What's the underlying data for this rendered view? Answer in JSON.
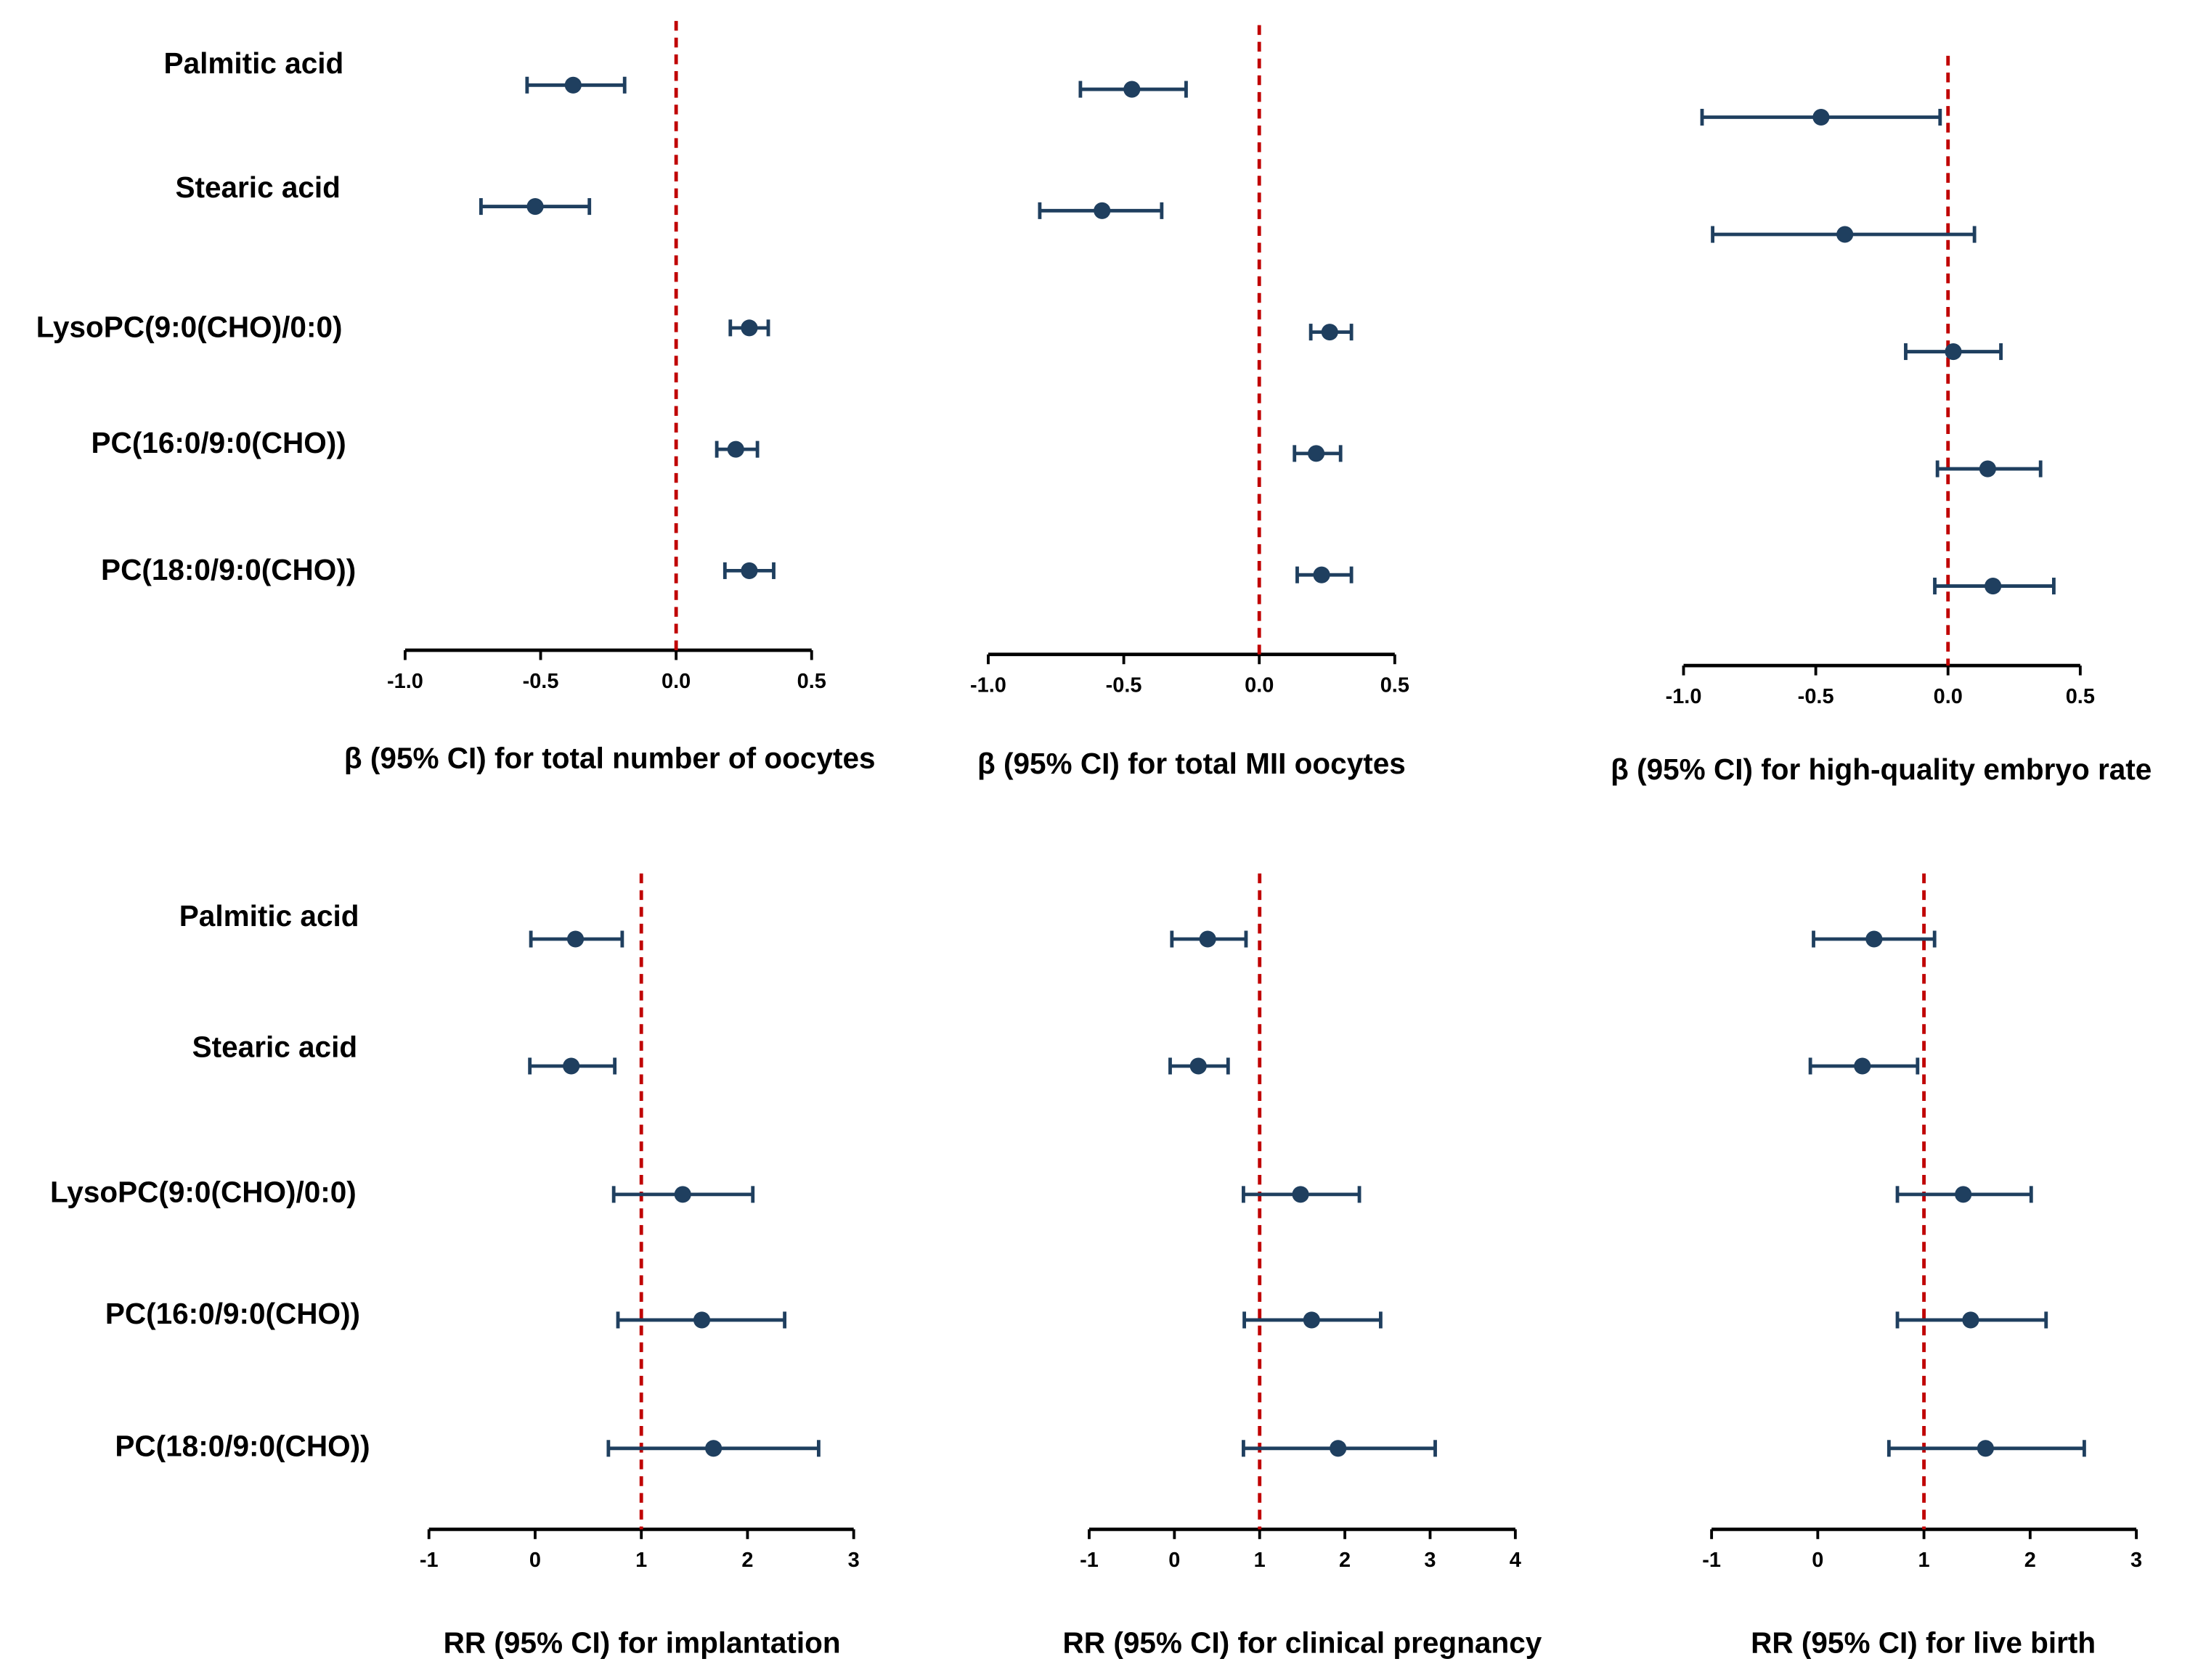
{
  "chart_data": [
    {
      "type": "forest",
      "categories": [
        "Palmitic acid",
        "Stearic acid",
        "LysoPC(9:0(CHO)/0:0)",
        "PC(16:0/9:0(CHO))",
        "PC(18:0/9:0(CHO))"
      ],
      "values": [
        -0.38,
        -0.52,
        0.27,
        0.22,
        0.27
      ],
      "lower": [
        -0.55,
        -0.72,
        0.2,
        0.15,
        0.18
      ],
      "upper": [
        -0.19,
        -0.32,
        0.34,
        0.3,
        0.36
      ],
      "xlabel": "β (95% CI) for total number of oocytes",
      "xlim": [
        -1,
        0.5
      ],
      "xticks": [
        {
          "value": -1,
          "label": "-1.0"
        },
        {
          "value": -0.5,
          "label": "-0.5"
        },
        {
          "value": 0,
          "label": "0.0"
        },
        0.5
      ],
      "ref": 0,
      "color": "#1f3f5f",
      "ref_color": "#c00000"
    },
    {
      "type": "forest",
      "values": [
        -0.47,
        -0.58,
        0.26,
        0.21,
        0.23
      ],
      "lower": [
        -0.66,
        -0.81,
        0.19,
        0.13,
        0.14
      ],
      "upper": [
        -0.27,
        -0.36,
        0.34,
        0.3,
        0.34
      ],
      "xlabel": "β (95% CI) for total MII oocytes",
      "xlim": [
        -1,
        0.5
      ],
      "xticks": [
        {
          "value": -1,
          "label": "-1.0"
        },
        {
          "value": -0.5,
          "label": "-0.5"
        },
        {
          "value": 0,
          "label": "0.0"
        },
        0.5
      ],
      "ref": 0,
      "color": "#1f3f5f",
      "ref_color": "#c00000"
    },
    {
      "type": "forest",
      "values": [
        -0.48,
        -0.39,
        0.02,
        0.15,
        0.17
      ],
      "lower": [
        -0.93,
        -0.89,
        -0.16,
        -0.04,
        -0.05
      ],
      "upper": [
        -0.03,
        0.1,
        0.2,
        0.35,
        0.4
      ],
      "xlabel": "β (95% CI) for high-quality embryo rate",
      "xlim": [
        -1,
        0.5
      ],
      "xticks": [
        {
          "value": -1,
          "label": "-1.0"
        },
        {
          "value": -0.5,
          "label": "-0.5"
        },
        {
          "value": 0,
          "label": "0.0"
        },
        0.5
      ],
      "ref": 0,
      "color": "#1f3f5f",
      "ref_color": "#c00000"
    },
    {
      "type": "forest",
      "categories": [
        "Palmitic acid",
        "Stearic acid",
        "LysoPC(9:0(CHO)/0:0)",
        "PC(16:0/9:0(CHO))",
        "PC(18:0/9:0(CHO))"
      ],
      "values": [
        0.38,
        0.34,
        1.39,
        1.57,
        1.68
      ],
      "lower": [
        -0.04,
        -0.05,
        0.74,
        0.78,
        0.69
      ],
      "upper": [
        0.82,
        0.75,
        2.05,
        2.35,
        2.67
      ],
      "xlabel": "RR (95% CI) for implantation",
      "xlim": [
        -1,
        3
      ],
      "xticks": [
        -1,
        0,
        1,
        2,
        3
      ],
      "ref": 1,
      "color": "#1f3f5f",
      "ref_color": "#c00000"
    },
    {
      "type": "forest",
      "values": [
        0.39,
        0.28,
        1.48,
        1.61,
        1.92
      ],
      "lower": [
        -0.03,
        -0.05,
        0.81,
        0.82,
        0.81
      ],
      "upper": [
        0.84,
        0.63,
        2.17,
        2.42,
        3.06
      ],
      "xlabel": "RR (95% CI) for clinical pregnancy",
      "xlim": [
        -1,
        4
      ],
      "xticks": [
        -1,
        0,
        1,
        2,
        3,
        4
      ],
      "ref": 1,
      "color": "#1f3f5f",
      "ref_color": "#c00000"
    },
    {
      "type": "forest",
      "values": [
        0.53,
        0.42,
        1.37,
        1.44,
        1.58
      ],
      "lower": [
        -0.04,
        -0.07,
        0.75,
        0.75,
        0.67
      ],
      "upper": [
        1.1,
        0.94,
        2.01,
        2.15,
        2.51
      ],
      "xlabel": "RR (95% CI) for live birth",
      "xlim": [
        -1,
        3
      ],
      "xticks": [
        -1,
        0,
        1,
        2,
        3
      ],
      "ref": 1,
      "color": "#1f3f5f",
      "ref_color": "#c00000"
    }
  ]
}
